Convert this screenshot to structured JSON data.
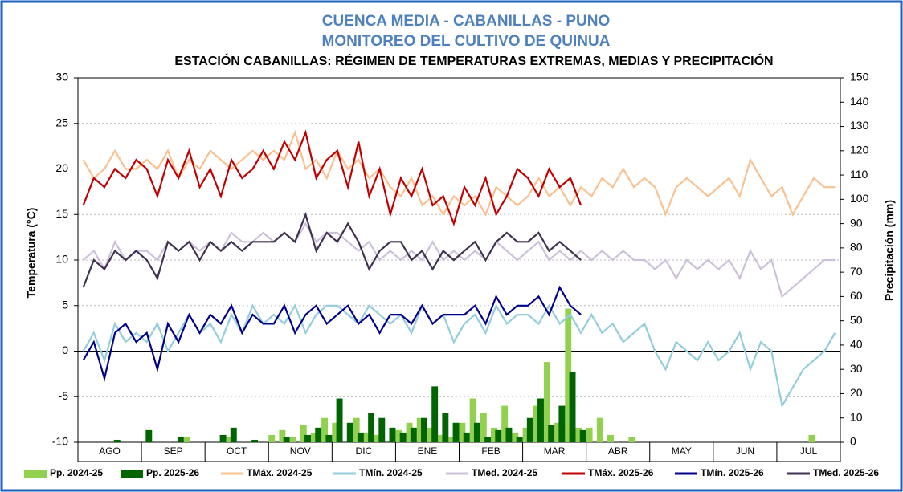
{
  "chart_data": {
    "type": "line",
    "title": "CUENCA MEDIA - CABANILLAS - PUNO",
    "subtitle": "MONITOREO DEL CULTIVO DE QUINUA",
    "chart_title": "ESTACIÓN CABANILLAS: RÉGIMEN DE TEMPERATURAS EXTREMAS, MEDIAS Y PRECIPITACIÓN",
    "y_label": "Temperatura (°C)",
    "y2_label": "Precipitación (mm)",
    "categories": [
      "AGO",
      "SEP",
      "OCT",
      "NOV",
      "DIC",
      "ENE",
      "FEB",
      "MAR",
      "ABR",
      "MAY",
      "JUN",
      "JUL"
    ],
    "ylim": [
      -10,
      30
    ],
    "yticks": [
      -10,
      -5,
      0,
      5,
      10,
      15,
      20,
      25,
      30
    ],
    "y2lim": [
      0,
      150
    ],
    "y2ticks": [
      0,
      10,
      20,
      30,
      40,
      50,
      60,
      70,
      80,
      90,
      100,
      110,
      120,
      130,
      140,
      150
    ],
    "grid": true,
    "series": [
      {
        "name": "Pp. 2024-25",
        "type": "bar",
        "axis": "y2",
        "color": "#92d050",
        "values": [
          [
            0,
            0,
            0,
            0,
            0,
            0
          ],
          [
            0,
            0,
            0,
            0,
            2,
            0
          ],
          [
            0,
            0,
            2,
            0,
            0,
            0
          ],
          [
            3,
            5,
            2,
            7,
            4,
            10
          ],
          [
            8,
            0,
            10,
            4,
            3,
            0
          ],
          [
            5,
            8,
            10,
            6,
            3,
            2
          ],
          [
            8,
            18,
            12,
            6,
            15,
            4
          ],
          [
            6,
            15,
            33,
            8,
            55,
            6
          ],
          [
            6,
            10,
            3,
            0,
            2,
            0
          ],
          [
            0,
            0,
            0,
            0,
            0,
            0
          ],
          [
            0,
            0,
            0,
            0,
            0,
            0
          ],
          [
            0,
            0,
            0,
            3,
            0,
            0
          ]
        ]
      },
      {
        "name": "Pp. 2025-26",
        "type": "bar",
        "axis": "y2",
        "color": "#006400",
        "values": [
          [
            0,
            0,
            0,
            1,
            0,
            0
          ],
          [
            5,
            0,
            0,
            2,
            0,
            0
          ],
          [
            0,
            3,
            6,
            0,
            1,
            0
          ],
          [
            0,
            2,
            0,
            3,
            6,
            3
          ],
          [
            18,
            8,
            4,
            12,
            10,
            6
          ],
          [
            4,
            6,
            10,
            23,
            12,
            8
          ],
          [
            4,
            8,
            2,
            5,
            6,
            2
          ],
          [
            10,
            18,
            7,
            15,
            29,
            5
          ],
          null,
          null,
          null,
          null
        ]
      },
      {
        "name": "TMáx. 2024-25",
        "type": "line",
        "color": "#fac090",
        "values": [
          [
            21,
            19,
            20,
            22,
            20,
            20
          ],
          [
            21,
            20,
            22,
            19,
            21,
            20
          ],
          [
            22,
            21,
            20,
            21,
            22,
            21
          ],
          [
            22,
            21,
            24,
            20,
            21,
            19
          ],
          [
            22,
            20,
            21,
            19,
            20,
            18
          ],
          [
            17,
            19,
            16,
            17,
            15,
            17
          ],
          [
            16,
            17,
            15,
            18,
            17,
            16
          ],
          [
            17,
            19,
            17,
            18,
            16,
            18
          ],
          [
            17,
            19,
            18,
            20,
            18,
            19
          ],
          [
            18,
            15,
            18,
            19,
            18,
            17
          ],
          [
            18,
            19,
            17,
            21,
            19,
            17
          ],
          [
            18,
            15,
            17,
            19,
            18,
            18
          ]
        ]
      },
      {
        "name": "TMín. 2024-25",
        "type": "line",
        "color": "#92cddc",
        "values": [
          [
            0,
            2,
            -1,
            3,
            1,
            2
          ],
          [
            1,
            3,
            0,
            2,
            4,
            2
          ],
          [
            3,
            1,
            4,
            2,
            5,
            3
          ],
          [
            4,
            3,
            5,
            2,
            4,
            5
          ],
          [
            5,
            4,
            3,
            5,
            4,
            3
          ],
          [
            4,
            2,
            5,
            3,
            4,
            1
          ],
          [
            3,
            4,
            2,
            5,
            3,
            4
          ],
          [
            4,
            3,
            5,
            3,
            4,
            2
          ],
          [
            4,
            2,
            3,
            1,
            2,
            3
          ],
          [
            0,
            -2,
            1,
            0,
            -1,
            1
          ],
          [
            -1,
            0,
            2,
            -2,
            1,
            0
          ],
          [
            -6,
            -4,
            -2,
            -1,
            0,
            2
          ]
        ]
      },
      {
        "name": "TMed. 2024-25",
        "type": "line",
        "color": "#ccc0da",
        "values": [
          [
            10,
            11,
            9,
            12,
            10,
            11
          ],
          [
            11,
            10,
            12,
            11,
            12,
            11
          ],
          [
            12,
            11,
            13,
            12,
            12,
            13
          ],
          [
            12,
            13,
            12,
            14,
            12,
            13
          ],
          [
            13,
            12,
            11,
            12,
            10,
            11
          ],
          [
            10,
            11,
            10,
            12,
            10,
            11
          ],
          [
            10,
            11,
            10,
            12,
            11,
            10
          ],
          [
            11,
            12,
            10,
            11,
            10,
            11
          ],
          [
            10,
            11,
            10,
            11,
            10,
            10
          ],
          [
            9,
            10,
            8,
            10,
            9,
            10
          ],
          [
            9,
            10,
            8,
            11,
            9,
            10
          ],
          [
            6,
            7,
            8,
            9,
            10,
            10
          ]
        ]
      },
      {
        "name": "TMáx. 2025-26",
        "type": "line",
        "color": "#c00000",
        "values": [
          [
            16,
            19,
            18,
            20,
            19,
            21
          ],
          [
            20,
            17,
            21,
            19,
            22,
            18
          ],
          [
            20,
            17,
            21,
            19,
            20,
            22
          ],
          [
            20,
            23,
            21,
            24,
            19,
            21
          ],
          [
            22,
            18,
            23,
            17,
            20,
            15
          ],
          [
            19,
            17,
            20,
            16,
            17,
            14
          ],
          [
            18,
            16,
            19,
            15,
            17,
            20
          ],
          [
            19,
            17,
            20,
            18,
            19,
            16
          ],
          null,
          null,
          null,
          null
        ]
      },
      {
        "name": "TMín. 2025-26",
        "type": "line",
        "color": "#00008b",
        "values": [
          [
            -1,
            1,
            -3,
            2,
            3,
            1
          ],
          [
            2,
            -2,
            3,
            1,
            4,
            2
          ],
          [
            4,
            3,
            5,
            2,
            4,
            3
          ],
          [
            3,
            5,
            2,
            4,
            5,
            3
          ],
          [
            4,
            5,
            3,
            4,
            2,
            4
          ],
          [
            4,
            3,
            5,
            3,
            4,
            4
          ],
          [
            4,
            5,
            3,
            6,
            4,
            5
          ],
          [
            5,
            6,
            4,
            7,
            5,
            4
          ],
          null,
          null,
          null,
          null
        ]
      },
      {
        "name": "TMed. 2025-26",
        "type": "line",
        "color": "#403151",
        "values": [
          [
            7,
            10,
            9,
            11,
            10,
            11
          ],
          [
            10,
            8,
            12,
            11,
            12,
            10
          ],
          [
            12,
            11,
            12,
            11,
            12,
            12
          ],
          [
            12,
            13,
            12,
            15,
            11,
            13
          ],
          [
            12,
            14,
            12,
            9,
            11,
            12
          ],
          [
            12,
            10,
            11,
            9,
            11,
            10
          ],
          [
            11,
            12,
            10,
            12,
            13,
            12
          ],
          [
            12,
            13,
            11,
            12,
            11,
            10
          ],
          null,
          null,
          null,
          null
        ]
      }
    ]
  }
}
